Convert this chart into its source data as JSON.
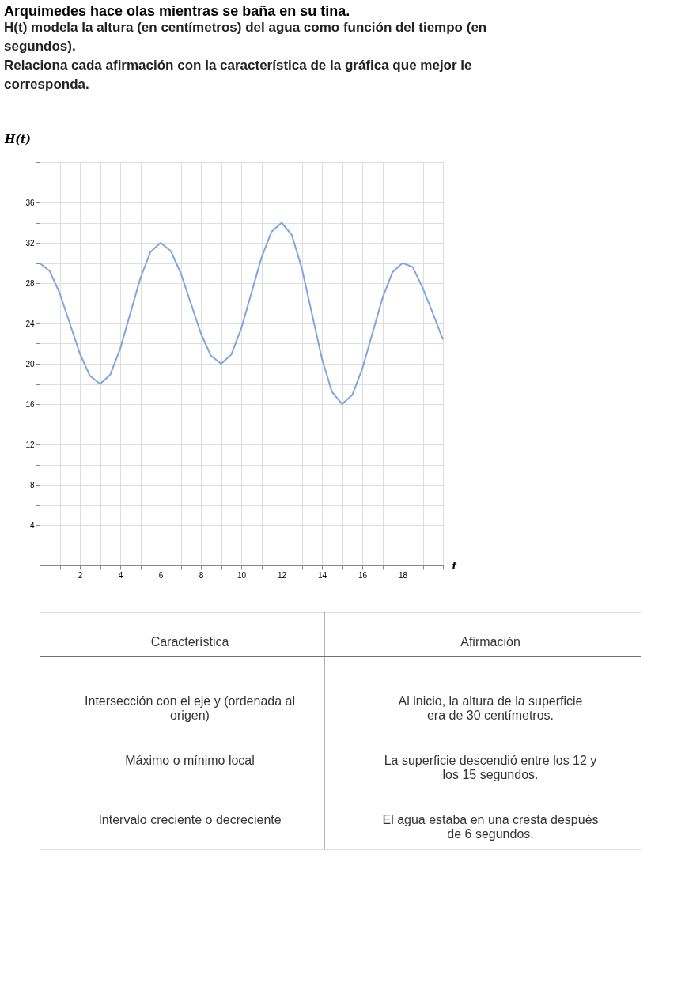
{
  "chart_data": {
    "type": "line",
    "title": "Arquímedes hace olas mientras se baña en su tina.",
    "subtitle": "H(t) modela la altura (en centímetros) del agua como función del tiempo (en segundos).",
    "xlabel": "t",
    "ylabel": "H(t)",
    "x": [
      0,
      0.5,
      1,
      1.5,
      2,
      2.5,
      3,
      3.5,
      4,
      4.5,
      5,
      5.5,
      6,
      6.5,
      7,
      7.5,
      8,
      8.5,
      9,
      9.5,
      10,
      10.5,
      11,
      11.5,
      12,
      12.5,
      13,
      13.5,
      14,
      14.5,
      15,
      15.5,
      16,
      16.5,
      17,
      17.5,
      18,
      18.5,
      19,
      19.5,
      20
    ],
    "series": [
      {
        "color": "#7ea6e0",
        "values": [
          30,
          29.2,
          27,
          24,
          21,
          18.8,
          18,
          18.9,
          21.5,
          25,
          28.5,
          31.1,
          32,
          31.2,
          29,
          26,
          23,
          20.8,
          20,
          20.9,
          23.5,
          27,
          30.5,
          33.1,
          34,
          32.8,
          29.5,
          25,
          20.5,
          17.2,
          16,
          16.9,
          19.5,
          23,
          26.5,
          29.1,
          30,
          29.6,
          27.5,
          25,
          22.4
        ]
      }
    ],
    "xlim": [
      0,
      20
    ],
    "ylim": [
      0,
      40
    ],
    "xticks": [
      {
        "value": 1,
        "label": null
      },
      2,
      {
        "value": 3,
        "label": null
      },
      4,
      {
        "value": 5,
        "label": null
      },
      6,
      {
        "value": 7,
        "label": null
      },
      8,
      {
        "value": 9,
        "label": null
      },
      10,
      {
        "value": 11,
        "label": null
      },
      12,
      {
        "value": 13,
        "label": null
      },
      14,
      {
        "value": 15,
        "label": null
      },
      16,
      {
        "value": 17,
        "label": null
      },
      18,
      {
        "value": 19,
        "label": null
      },
      {
        "value": 20,
        "label": null
      }
    ],
    "yticks": [
      {
        "value": 2,
        "label": null
      },
      4,
      {
        "value": 6,
        "label": null
      },
      8,
      {
        "value": 10,
        "label": null
      },
      12,
      {
        "value": 14,
        "label": null
      },
      16,
      {
        "value": 18,
        "label": null
      },
      20,
      {
        "value": 22,
        "label": null
      },
      24,
      {
        "value": 26,
        "label": null
      },
      28,
      {
        "value": 30,
        "label": null
      },
      32,
      {
        "value": 34,
        "label": null
      },
      36,
      {
        "value": 38,
        "label": null
      },
      {
        "value": 40,
        "label": null
      }
    ],
    "grid": true,
    "line_style": "solid",
    "marker": "none",
    "annotations": [
      "Relaciona cada afirmación con la característica de la gráfica que mejor le corresponda.",
      "Característica",
      "Afirmación",
      "Intersección con el eje y (ordenada al origen)",
      "Al inicio, la altura de la superficie era de 30 centímetros.",
      "Máximo o mínimo local",
      "La superficie descendió entre los 12 y los 15 segundos.",
      "Intervalo creciente o decreciente",
      "El agua estaba en una cresta después de 6 segundos."
    ]
  }
}
